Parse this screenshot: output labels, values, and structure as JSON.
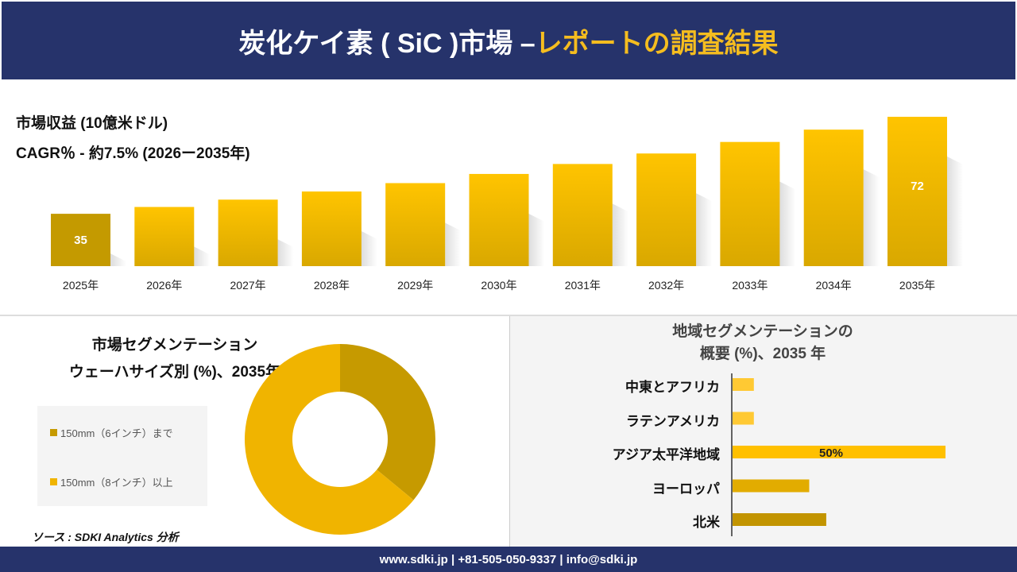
{
  "header": {
    "title_main": "炭化ケイ素 ( SiC )市場 –",
    "title_accent": "レポートの調査結果"
  },
  "revenue": {
    "unit_label": "市場収益 (10億米ドル)",
    "cagr_label": "CAGR％ - 約7.5% (2026ー2035年)"
  },
  "chart_data": [
    {
      "type": "bar",
      "categories": [
        "2025年",
        "2026年",
        "2027年",
        "2028年",
        "2029年",
        "2030年",
        "2031年",
        "2032年",
        "2033年",
        "2034年",
        "2035年"
      ],
      "values": [
        35,
        37.6,
        40.4,
        43.5,
        46.7,
        50.2,
        54,
        58,
        62.4,
        67.1,
        72
      ],
      "data_labels": {
        "0": "35",
        "10": "72"
      },
      "ylabel": "市場収益 (10億米ドル)",
      "colors": {
        "first": "#c49a00",
        "bar": "#f5bd00"
      }
    },
    {
      "type": "pie",
      "donut": true,
      "title": "市場セグメンテーション ウェーハサイズ別 (%)、2035年",
      "labels": [
        "150mm（6インチ）まで",
        "150mm（8インチ）以上"
      ],
      "values": [
        36,
        64
      ],
      "colors": [
        "#c69a00",
        "#f0b400"
      ]
    },
    {
      "type": "bar",
      "orientation": "horizontal",
      "title": "地域セグメンテーションの概要 (%)、2035 年",
      "categories": [
        "中東とアフリカ",
        "ラテンアメリカ",
        "アジア太平洋地域",
        "ヨーロッパ",
        "北米"
      ],
      "values": [
        5,
        5,
        50,
        18,
        22
      ],
      "data_labels": {
        "2": "50%"
      },
      "colors": [
        "#ffc933",
        "#ffc933",
        "#ffc000",
        "#e2ac00",
        "#c29400"
      ]
    }
  ],
  "segment": {
    "title_line1": "市場セグメンテーション",
    "title_line2": "ウェーハサイズ別 (%)、2035年"
  },
  "region": {
    "title_line1": "地域セグメンテーションの",
    "title_line2": "概要 (%)、2035 年"
  },
  "source": "ソース : SDKI Analytics 分析",
  "footer": "www.sdki.jp | +81-505-050-9337 | info@sdki.jp"
}
